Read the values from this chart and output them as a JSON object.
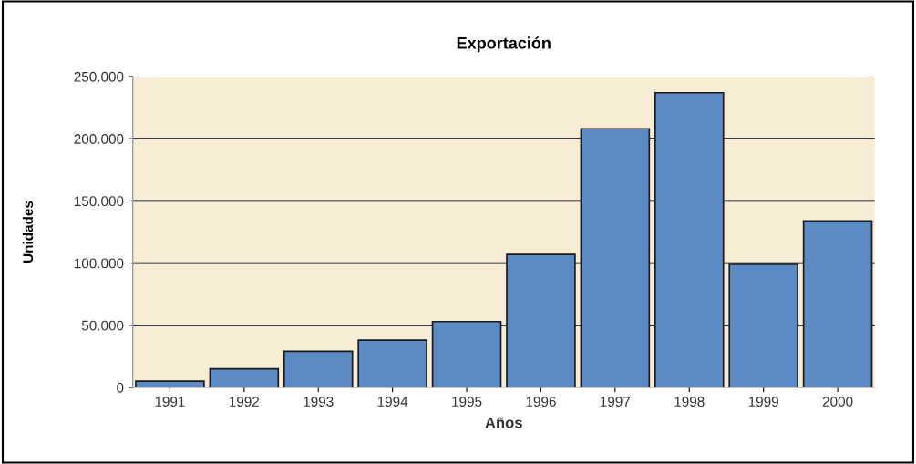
{
  "chart_data": {
    "type": "bar",
    "title": "Exportación",
    "xlabel": "Años",
    "ylabel": "Unidades",
    "categories": [
      "1991",
      "1992",
      "1993",
      "1994",
      "1995",
      "1996",
      "1997",
      "1998",
      "1999",
      "2000"
    ],
    "values": [
      5000,
      15000,
      29000,
      38000,
      53000,
      107000,
      208000,
      237000,
      99000,
      134000
    ],
    "color": "#5b8ac4",
    "ylim": [
      0,
      250000
    ],
    "yticks": [
      {
        "value": 0,
        "label": "0"
      },
      {
        "value": 50000,
        "label": "50.000"
      },
      {
        "value": 100000,
        "label": "100.000"
      },
      {
        "value": 150000,
        "label": "150.000"
      },
      {
        "value": 200000,
        "label": "200.000"
      },
      {
        "value": 250000,
        "label": "250.000"
      }
    ],
    "grid": "y",
    "legend": false
  }
}
